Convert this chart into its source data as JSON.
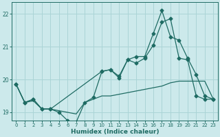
{
  "xlabel": "Humidex (Indice chaleur)",
  "ylabel": "",
  "bg_color": "#cce9eb",
  "grid_color": "#aad4d6",
  "line_color": "#1e6b63",
  "xlim": [
    -0.5,
    23.5
  ],
  "ylim": [
    18.75,
    22.35
  ],
  "yticks": [
    19,
    20,
    21,
    22
  ],
  "xticks": [
    0,
    1,
    2,
    3,
    4,
    5,
    6,
    7,
    8,
    9,
    10,
    11,
    12,
    13,
    14,
    15,
    16,
    17,
    18,
    19,
    20,
    21,
    22,
    23
  ],
  "line1_x": [
    0,
    1,
    2,
    3,
    4,
    5,
    6,
    7,
    8,
    9,
    10,
    11,
    12,
    13,
    14,
    15,
    16,
    17,
    18,
    19,
    20,
    21,
    22,
    23
  ],
  "line1_y": [
    19.85,
    19.3,
    19.35,
    19.1,
    19.1,
    19.05,
    19.0,
    18.95,
    19.3,
    19.4,
    19.5,
    19.5,
    19.55,
    19.6,
    19.65,
    19.7,
    19.75,
    19.8,
    19.9,
    19.95,
    19.95,
    19.95,
    19.95,
    19.4
  ],
  "line2_x": [
    0,
    1,
    2,
    3,
    4,
    5,
    6,
    7,
    8,
    9,
    10,
    11,
    12,
    13,
    14,
    15,
    16,
    17,
    18,
    19,
    20,
    21,
    22,
    23
  ],
  "line2_y": [
    19.85,
    19.3,
    19.4,
    19.1,
    19.1,
    19.0,
    18.75,
    18.7,
    19.3,
    19.45,
    20.25,
    20.3,
    20.05,
    20.6,
    20.5,
    20.65,
    21.05,
    21.75,
    21.85,
    20.65,
    20.6,
    19.5,
    19.4,
    19.4
  ],
  "line3_x": [
    0,
    1,
    2,
    3,
    4,
    10,
    11,
    12,
    13,
    14,
    15,
    16,
    17,
    18,
    19,
    20,
    21,
    22,
    23
  ],
  "line3_y": [
    19.85,
    19.3,
    19.4,
    19.1,
    19.1,
    20.25,
    20.3,
    20.1,
    20.6,
    20.7,
    20.7,
    21.4,
    22.1,
    21.3,
    21.2,
    20.65,
    20.15,
    19.5,
    19.4
  ]
}
